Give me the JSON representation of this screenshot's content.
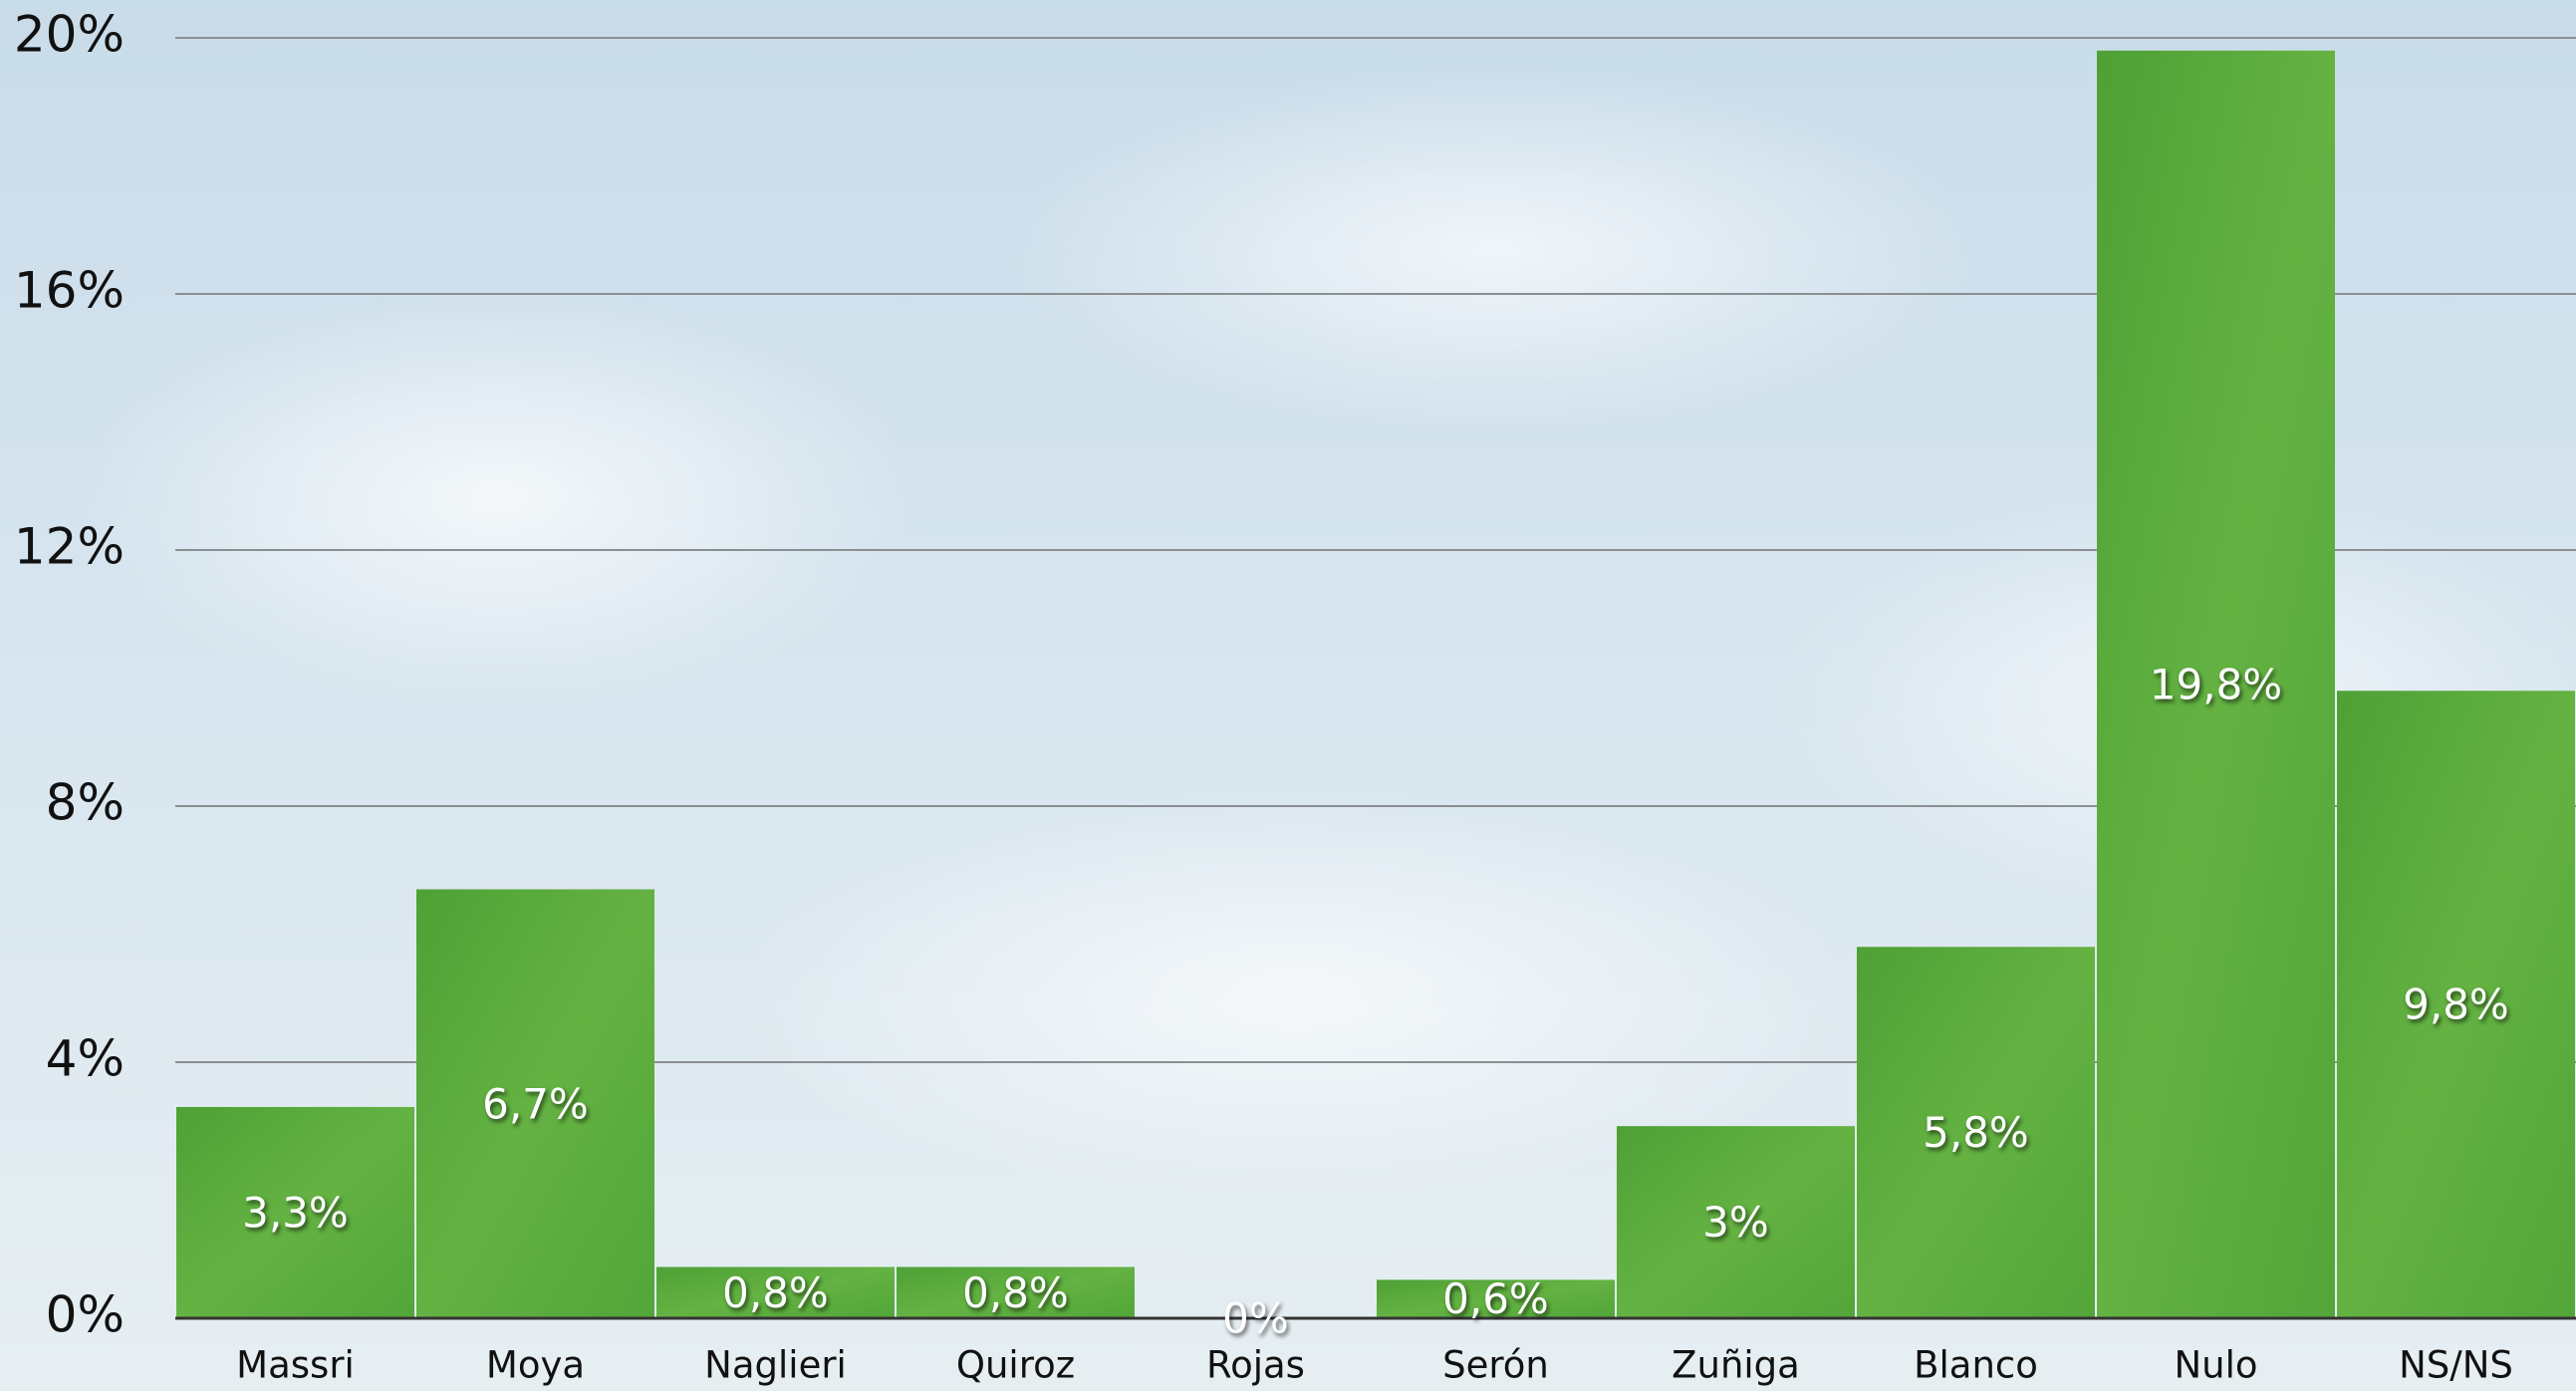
{
  "chart_data": {
    "type": "bar",
    "categories": [
      "Massri",
      "Moya",
      "Naglieri",
      "Quiroz",
      "Rojas",
      "Serón",
      "Zuñiga",
      "Blanco",
      "Nulo",
      "NS/NS"
    ],
    "values": [
      3.3,
      6.7,
      0.8,
      0.8,
      0,
      0.6,
      3,
      5.8,
      19.8,
      9.8
    ],
    "value_labels": [
      "3,3%",
      "6,7%",
      "0,8%",
      "0,8%",
      "0%",
      "0,6%",
      "3%",
      "5,8%",
      "19,8%",
      "9,8%"
    ],
    "color": "#5aab3c",
    "ylim": [
      0,
      20
    ],
    "yticks": [
      {
        "value": 0,
        "label": "0%"
      },
      {
        "value": 4,
        "label": "4%"
      },
      {
        "value": 8,
        "label": "8%"
      },
      {
        "value": 12,
        "label": "12%"
      },
      {
        "value": 16,
        "label": "16%"
      },
      {
        "value": 20,
        "label": "20%"
      }
    ],
    "grid": true
  }
}
